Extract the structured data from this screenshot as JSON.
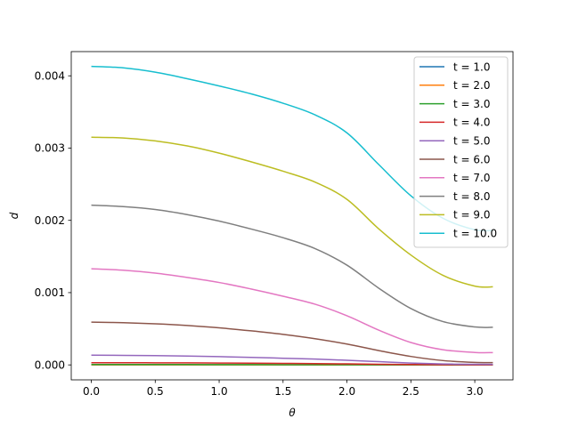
{
  "chart_data": {
    "type": "line",
    "xlabel": "θ",
    "ylabel": "d",
    "xlim": [
      -0.157,
      3.299
    ],
    "ylim": [
      -0.000207,
      0.004335
    ],
    "xticks": [
      {
        "value": 0.0,
        "label": "0.0"
      },
      {
        "value": 0.5,
        "label": "0.5"
      },
      {
        "value": 1.0,
        "label": "1.0"
      },
      {
        "value": 1.5,
        "label": "1.5"
      },
      {
        "value": 2.0,
        "label": "2.0"
      },
      {
        "value": 2.5,
        "label": "2.5"
      },
      {
        "value": 3.0,
        "label": "3.0"
      }
    ],
    "yticks": [
      {
        "value": 0.0,
        "label": "0.000"
      },
      {
        "value": 0.001,
        "label": "0.001"
      },
      {
        "value": 0.002,
        "label": "0.002"
      },
      {
        "value": 0.003,
        "label": "0.003"
      },
      {
        "value": 0.004,
        "label": "0.004"
      }
    ],
    "grid": false,
    "legend_position": "upper right",
    "x": [
      0.0,
      0.25,
      0.5,
      0.75,
      1.0,
      1.25,
      1.5,
      1.75,
      2.0,
      2.25,
      2.5,
      2.75,
      3.0,
      3.1416
    ],
    "series": [
      {
        "name": "t = 1.0",
        "color": "#1f77b4",
        "values": [
          0.0,
          0.0,
          0.0,
          0.0,
          0.0,
          0.0,
          0.0,
          0.0,
          0.0,
          0.0,
          0.0,
          0.0,
          0.0,
          0.0
        ]
      },
      {
        "name": "t = 2.0",
        "color": "#ff7f0e",
        "values": [
          1e-06,
          1e-06,
          1e-06,
          1e-06,
          1e-06,
          1e-06,
          1e-06,
          0.0,
          0.0,
          0.0,
          0.0,
          0.0,
          0.0,
          0.0
        ]
      },
      {
        "name": "t = 3.0",
        "color": "#2ca02c",
        "values": [
          5e-06,
          5e-06,
          5e-06,
          5e-06,
          4e-06,
          4e-06,
          3e-06,
          3e-06,
          2e-06,
          1e-06,
          1e-06,
          0.0,
          0.0,
          0.0
        ]
      },
      {
        "name": "t = 4.0",
        "color": "#d62728",
        "values": [
          3e-05,
          3e-05,
          2.9e-05,
          2.8e-05,
          2.6e-05,
          2.4e-05,
          2.1e-05,
          1.8e-05,
          1.4e-05,
          9e-06,
          5e-06,
          2e-06,
          1e-06,
          1e-06
        ]
      },
      {
        "name": "t = 5.0",
        "color": "#9467bd",
        "values": [
          0.000135,
          0.000132,
          0.000128,
          0.000122,
          0.000114,
          0.000104,
          9.2e-05,
          8e-05,
          6.4e-05,
          4.5e-05,
          2.6e-05,
          1.3e-05,
          8e-06,
          7e-06
        ]
      },
      {
        "name": "t = 6.0",
        "color": "#8c564b",
        "values": [
          0.000592,
          0.000584,
          0.000569,
          0.000546,
          0.000513,
          0.000471,
          0.000422,
          0.000362,
          0.000288,
          0.000198,
          0.000117,
          6e-05,
          3.4e-05,
          3.1e-05
        ]
      },
      {
        "name": "t = 7.0",
        "color": "#e377c2",
        "values": [
          0.00133,
          0.00131,
          0.00127,
          0.00121,
          0.00114,
          0.00105,
          0.00095,
          0.00084,
          0.00068,
          0.00048,
          0.00031,
          0.00021,
          0.000172,
          0.00017
        ]
      },
      {
        "name": "t = 8.0",
        "color": "#7f7f7f",
        "values": [
          0.00221,
          0.00219,
          0.00215,
          0.00208,
          0.00199,
          0.00188,
          0.00176,
          0.00161,
          0.00138,
          0.00106,
          0.00078,
          0.0006,
          0.000525,
          0.00052
        ]
      },
      {
        "name": "t = 9.0",
        "color": "#bcbd22",
        "values": [
          0.00315,
          0.00314,
          0.0031,
          0.00303,
          0.00293,
          0.00281,
          0.00268,
          0.00253,
          0.00229,
          0.00188,
          0.00152,
          0.00124,
          0.00109,
          0.00108
        ]
      },
      {
        "name": "t = 10.0",
        "color": "#17becf",
        "values": [
          0.00413,
          0.00411,
          0.00405,
          0.00396,
          0.00386,
          0.00375,
          0.00362,
          0.00346,
          0.00321,
          0.00277,
          0.00234,
          0.00203,
          0.00187,
          0.00186
        ]
      }
    ]
  }
}
